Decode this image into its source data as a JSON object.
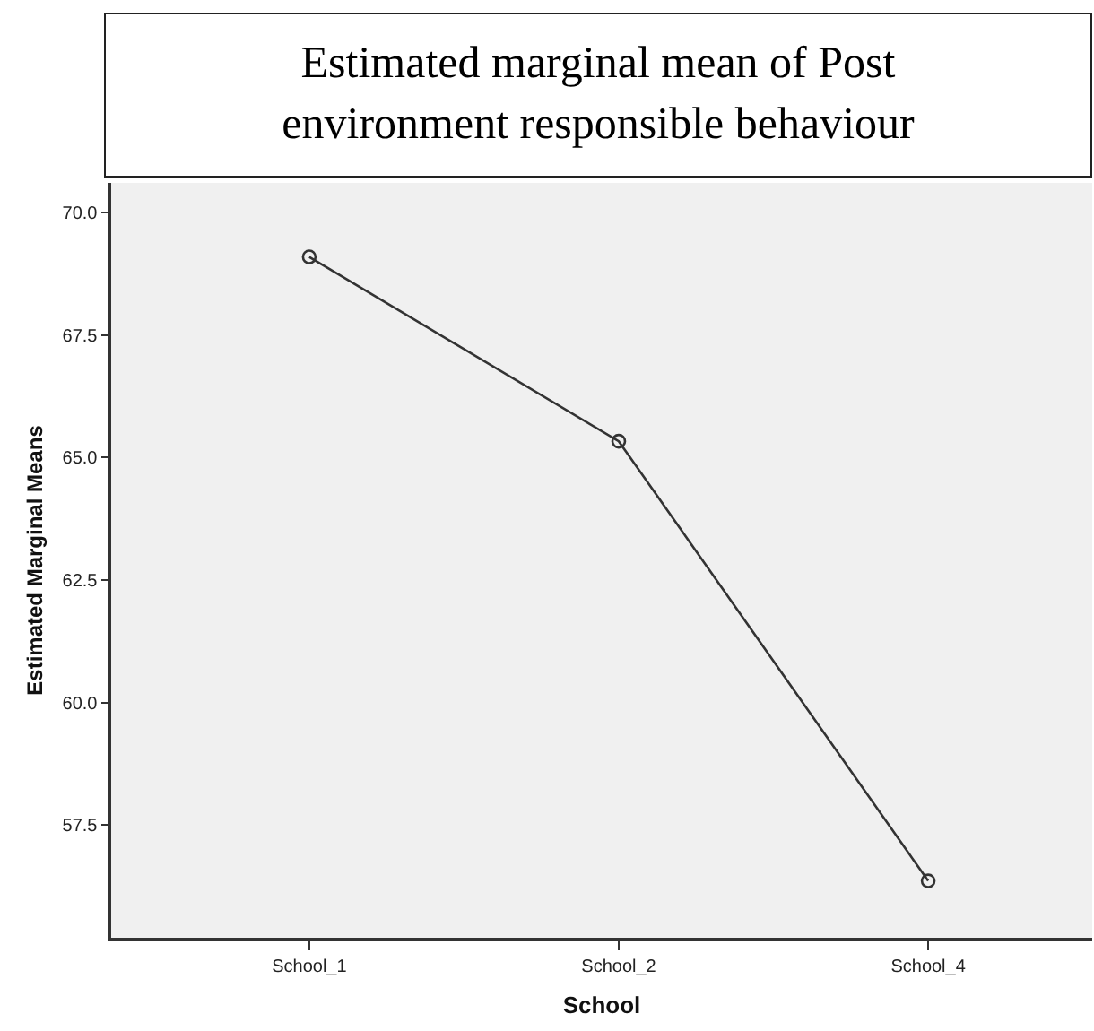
{
  "chart_data": {
    "type": "line",
    "title": "Estimated marginal mean of Post environment responsible behaviour",
    "xlabel": "School",
    "ylabel": "Estimated Marginal Means",
    "categories": [
      "School_1",
      "School_2",
      "School_4"
    ],
    "series": [
      {
        "color": "#333333",
        "values": [
          69.09,
          65.33,
          56.36
        ]
      }
    ],
    "ylim": [
      55.2,
      70.6
    ],
    "yticks": [
      {
        "value": 57.5,
        "label": "57.5"
      },
      {
        "value": 60,
        "label": "60.0"
      },
      {
        "value": 62.5,
        "label": "62.5"
      },
      {
        "value": 65,
        "label": "65.0"
      },
      {
        "value": 67.5,
        "label": "67.5"
      },
      {
        "value": 70,
        "label": "70.0"
      }
    ],
    "grid": false,
    "legend": false,
    "marker": "circle",
    "line_style": "solid"
  }
}
